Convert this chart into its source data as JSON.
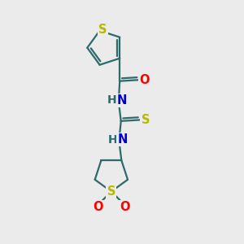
{
  "background_color": "#ebebeb",
  "atom_colors": {
    "S": "#b8b800",
    "O": "#ff0000",
    "N": "#0000cc",
    "C": "#2d6b6b"
  },
  "bond_color": "#2d6b6b",
  "bond_width": 1.6,
  "font_size": 10.5,
  "figsize": [
    3.0,
    3.0
  ],
  "dpi": 100
}
